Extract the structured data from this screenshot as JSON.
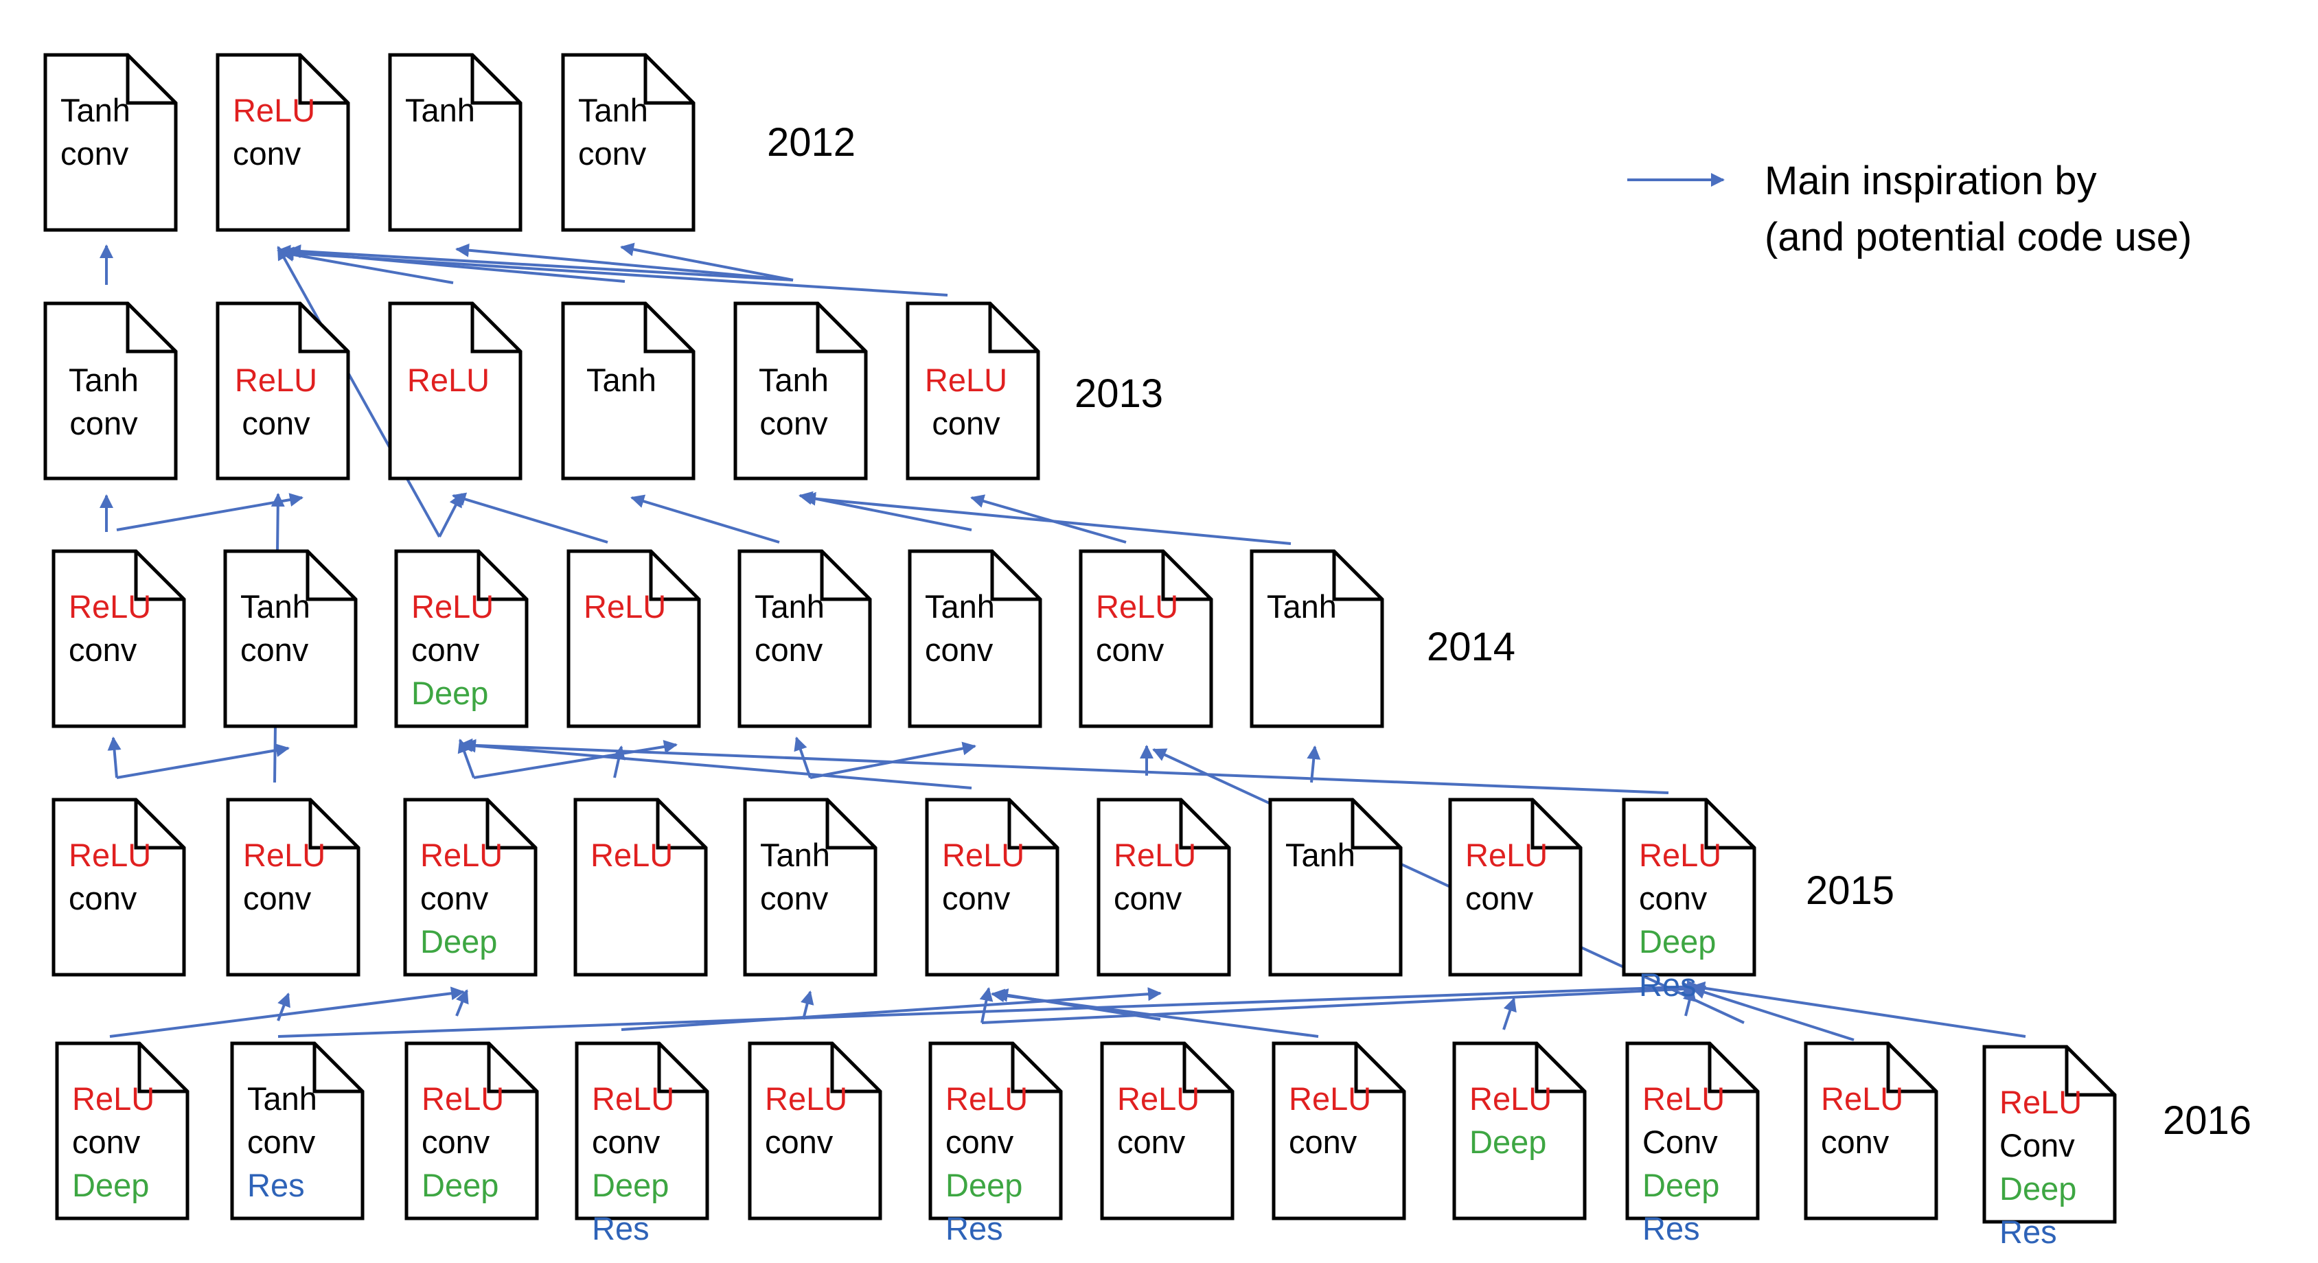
{
  "colors": {
    "relu": "#e02020",
    "tanh": "#000000",
    "conv": "#000000",
    "deep": "#3da642",
    "res": "#2e63b8",
    "arrow": "#4a6fc0",
    "doc_stroke": "#000000"
  },
  "legend": {
    "line1": "Main inspiration by",
    "line2": "(and potential code use)"
  },
  "years": {
    "y2012": "2012",
    "y2013": "2013",
    "y2014": "2014",
    "y2015": "2015",
    "y2016": "2016"
  },
  "papers": {
    "p2012_1": [
      "Tanh",
      "conv"
    ],
    "p2012_2": [
      "ReLU",
      "conv"
    ],
    "p2012_3": [
      "Tanh"
    ],
    "p2012_4": [
      "Tanh",
      "conv"
    ],
    "p2013_1": [
      "Tanh",
      "conv"
    ],
    "p2013_2": [
      "ReLU",
      "conv"
    ],
    "p2013_3": [
      "ReLU"
    ],
    "p2013_4": [
      "Tanh"
    ],
    "p2013_5": [
      "Tanh",
      "conv"
    ],
    "p2013_6": [
      "ReLU",
      "conv"
    ],
    "p2014_1": [
      "ReLU",
      "conv"
    ],
    "p2014_2": [
      "Tanh",
      "conv"
    ],
    "p2014_3": [
      "ReLU",
      "conv",
      "Deep"
    ],
    "p2014_4": [
      "ReLU"
    ],
    "p2014_5": [
      "Tanh",
      "conv"
    ],
    "p2014_6": [
      "Tanh",
      "conv"
    ],
    "p2014_7": [
      "ReLU",
      "conv"
    ],
    "p2014_8": [
      "Tanh"
    ],
    "p2015_1": [
      "ReLU",
      "conv"
    ],
    "p2015_2": [
      "ReLU",
      "conv"
    ],
    "p2015_3": [
      "ReLU",
      "conv",
      "Deep"
    ],
    "p2015_4": [
      "ReLU"
    ],
    "p2015_5": [
      "Tanh",
      "conv"
    ],
    "p2015_6": [
      "ReLU",
      "conv"
    ],
    "p2015_7": [
      "ReLU",
      "conv"
    ],
    "p2015_8": [
      "Tanh"
    ],
    "p2015_9": [
      "ReLU",
      "conv"
    ],
    "p2015_10": [
      "ReLU",
      "conv",
      "Deep",
      "Res"
    ],
    "p2016_1": [
      "ReLU",
      "conv",
      "Deep"
    ],
    "p2016_2": [
      "Tanh",
      "conv",
      "Res"
    ],
    "p2016_3": [
      "ReLU",
      "conv",
      "Deep"
    ],
    "p2016_4": [
      "ReLU",
      "conv",
      "Deep",
      "Res"
    ],
    "p2016_5": [
      "ReLU",
      "conv"
    ],
    "p2016_6": [
      "ReLU",
      "conv",
      "Deep",
      "Res"
    ],
    "p2016_7": [
      "ReLU",
      "conv"
    ],
    "p2016_8": [
      "ReLU",
      "conv"
    ],
    "p2016_9": [
      "ReLU",
      "Deep"
    ],
    "p2016_10": [
      "ReLU",
      "Conv",
      "Deep",
      "Res"
    ],
    "p2016_11": [
      "ReLU",
      "conv"
    ],
    "p2016_12": [
      "ReLU",
      "Conv",
      "Deep",
      "Res"
    ]
  }
}
